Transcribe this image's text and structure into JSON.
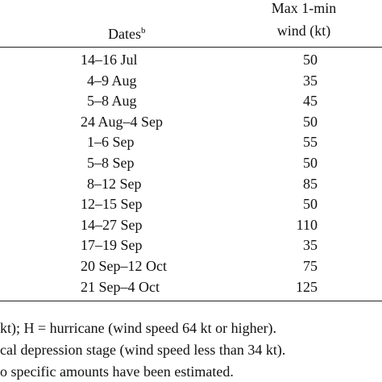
{
  "table": {
    "header": {
      "dates": "Dates",
      "dates_note": "b",
      "wind_line1": "Max 1-min",
      "wind_line2": "wind (kt)"
    },
    "rows": [
      [
        "14–16 Jul",
        "50"
      ],
      [
        "4–9 Aug",
        "35"
      ],
      [
        "5–8 Aug",
        "45"
      ],
      [
        "24 Aug–4 Sep",
        "50"
      ],
      [
        "1–6 Sep",
        "55"
      ],
      [
        "5–8 Sep",
        "50"
      ],
      [
        "8–12 Sep",
        "85"
      ],
      [
        "12–15 Sep",
        "50"
      ],
      [
        "14–27 Sep",
        "110"
      ],
      [
        "17–19 Sep",
        "35"
      ],
      [
        "20 Sep–12 Oct",
        "75"
      ],
      [
        "21 Sep–4 Oct",
        "125"
      ]
    ]
  },
  "footnotes": [
    "kt); H = hurricane (wind speed 64 kt or higher).",
    "cal depression stage (wind speed less than 34 kt).",
    "o specific amounts have been estimated."
  ]
}
